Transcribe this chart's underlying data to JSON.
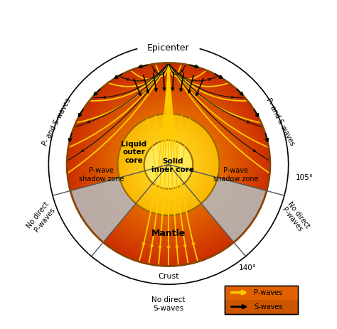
{
  "title": "Epicenter",
  "bg_color": "#ffffff",
  "R": 1.0,
  "R_liq": 0.5,
  "R_sol": 0.24,
  "mantle_outer_color": [
    0.8,
    0.18,
    0.0
  ],
  "mantle_inner_color": [
    0.98,
    0.65,
    0.0
  ],
  "liq_core_outer": [
    0.98,
    0.72,
    0.0
  ],
  "liq_core_inner": [
    1.0,
    0.88,
    0.2
  ],
  "sol_core_outer": [
    0.99,
    0.9,
    0.3
  ],
  "sol_core_inner": [
    1.0,
    0.95,
    0.5
  ],
  "shadow_color": "#b8b8b8",
  "p_wave_color": "#ffcc00",
  "s_wave_color": "#111111",
  "crust_label": "Crust",
  "mantle_label": "Mantle",
  "liquid_core_label": "Liquid\nouter\ncore",
  "solid_core_label": "Solid\ninner core",
  "shadow_label": "P-wave\nshadow zone",
  "epicenter_label": "Epicenter",
  "angle_105": "105°",
  "angle_140": "140°",
  "no_direct_p": "No direct\nP-waves",
  "no_direct_s": "No direct\nS-waves",
  "p_and_s": "P- and S-waves",
  "legend_p": "P-waves",
  "legend_s": "S-waves",
  "figsize": [
    4.74,
    4.63
  ],
  "dpi": 100
}
